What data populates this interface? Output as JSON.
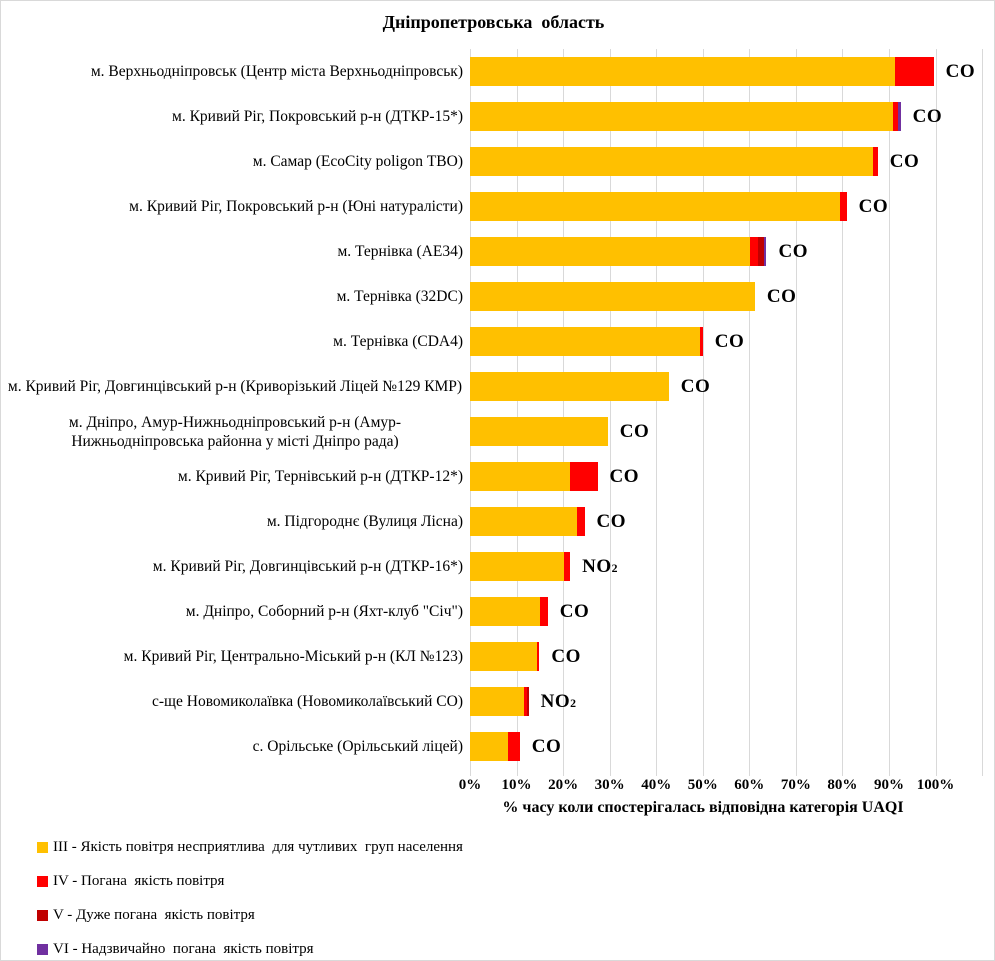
{
  "title": "Дніпропетровська  область",
  "chart_data": {
    "type": "bar",
    "orientation": "horizontal",
    "stacked": true,
    "title": "Дніпропетровська  область",
    "xlabel": "% часу коли спостерігалась відповідна категорія UAQI",
    "xlim": [
      0,
      110
    ],
    "xtick_labels": [
      "0%",
      "10%",
      "20%",
      "30%",
      "40%",
      "50%",
      "60%",
      "70%",
      "80%",
      "90%",
      "100%"
    ],
    "grid": "vertical",
    "legend_position": "bottom-left",
    "series_meta": [
      {
        "key": "III",
        "color": "#FFC000",
        "label": "III - Якість повітря несприятлива  для чутливих  груп населення"
      },
      {
        "key": "IV",
        "color": "#FF0000",
        "label": "IV - Погана  якість повітря"
      },
      {
        "key": "V",
        "color": "#C00000",
        "label": "V - Дуже погана  якість повітря"
      },
      {
        "key": "VI",
        "color": "#7030A0",
        "label": "VI - Надзвичайно  погана  якість повітря"
      }
    ],
    "rows": [
      {
        "station": "м. Верхньодніпровськ (Центр міста Верхньодніпровськ)",
        "pollutant": "CO",
        "III": 91.4,
        "IV": 8.2,
        "V": 0,
        "VI": 0
      },
      {
        "station": "м. Кривий Ріг, Покровський р-н (ДТКР-15*)",
        "pollutant": "CO",
        "III": 90.8,
        "IV": 1.1,
        "V": 0,
        "VI": 0.6
      },
      {
        "station": "м. Самар (EcoCity poligon ТВО)",
        "pollutant": "CO",
        "III": 86.5,
        "IV": 1.1,
        "V": 0,
        "VI": 0
      },
      {
        "station": "м. Кривий Ріг, Покровський р-н (Юні натуралісти)",
        "pollutant": "CO",
        "III": 79.5,
        "IV": 1.4,
        "V": 0,
        "VI": 0
      },
      {
        "station": "м. Тернівка (AE34)",
        "pollutant": "CO",
        "III": 60.1,
        "IV": 1.7,
        "V": 1.3,
        "VI": 0.6
      },
      {
        "station": "м. Тернівка (32DC)",
        "pollutant": "CO",
        "III": 61.2,
        "IV": 0,
        "V": 0,
        "VI": 0
      },
      {
        "station": "м. Тернівка (CDA4)",
        "pollutant": "CO",
        "III": 49.4,
        "IV": 0.6,
        "V": 0,
        "VI": 0
      },
      {
        "station": "м. Кривий Ріг, Довгинцівський р-н (Криворізький Ліцей №129 КМР)",
        "pollutant": "CO",
        "III": 42.7,
        "IV": 0,
        "V": 0,
        "VI": 0
      },
      {
        "station": "м. Дніпро, Амур-Нижньодніпровський р-н (Амур-Нижньодніпровська районна у місті Дніпро рада)",
        "pollutant": "CO",
        "III": 29.6,
        "IV": 0,
        "V": 0,
        "VI": 0
      },
      {
        "station": "м. Кривий Ріг, Тернівський р-н (ДТКР-12*)",
        "pollutant": "CO",
        "III": 21.5,
        "IV": 5.9,
        "V": 0,
        "VI": 0
      },
      {
        "station": "м. Підгороднє (Вулиця Лісна)",
        "pollutant": "CO",
        "III": 23.0,
        "IV": 1.6,
        "V": 0,
        "VI": 0
      },
      {
        "station": "м. Кривий Ріг, Довгинцівський р-н (ДТКР-16*)",
        "pollutant": "NO₂",
        "III": 20.3,
        "IV": 1.2,
        "V": 0,
        "VI": 0
      },
      {
        "station": "м. Дніпро, Соборний р-н (Яхт-клуб \"Січ\")",
        "pollutant": "CO",
        "III": 15.1,
        "IV": 1.6,
        "V": 0,
        "VI": 0
      },
      {
        "station": "м. Кривий Ріг, Центрально-Міський р-н (КЛ №123)",
        "pollutant": "CO",
        "III": 14.4,
        "IV": 0.5,
        "V": 0,
        "VI": 0
      },
      {
        "station": "с-ще Новомиколаївка (Новомиколаївський СО)",
        "pollutant": "NO₂",
        "III": 11.6,
        "IV": 0.6,
        "V": 0.4,
        "VI": 0
      },
      {
        "station": "с. Орільське (Орільський ліцей)",
        "pollutant": "CO",
        "III": 8.1,
        "IV": 2.6,
        "V": 0,
        "VI": 0
      }
    ]
  }
}
